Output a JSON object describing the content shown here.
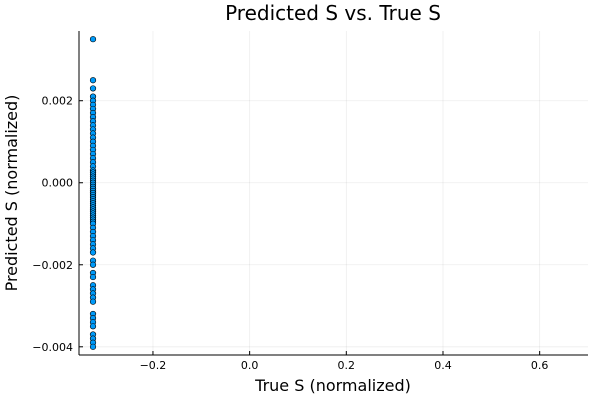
{
  "chart_data": {
    "type": "scatter",
    "title": "Predicted S vs. True S",
    "xlabel": "True S (normalized)",
    "ylabel": "Predicted S (normalized)",
    "xlim": [
      -0.353,
      0.7
    ],
    "ylim": [
      -0.0042,
      0.0037
    ],
    "xticks": [
      -0.2,
      0.0,
      0.2,
      0.4,
      0.6
    ],
    "xtick_labels": [
      "−0.2",
      "0.0",
      "0.2",
      "0.4",
      "0.6"
    ],
    "yticks": [
      -0.004,
      -0.002,
      0.0,
      0.002
    ],
    "ytick_labels": [
      "−0.004",
      "−0.002",
      "0.000",
      "0.002"
    ],
    "grid": true,
    "legend": "none",
    "marker_color": "#009af9",
    "series": [
      {
        "x": [
          -0.324,
          -0.324,
          -0.324,
          -0.324,
          -0.324,
          -0.324,
          -0.324,
          -0.324,
          -0.324,
          -0.324,
          -0.324,
          -0.324,
          -0.324,
          -0.324,
          -0.324,
          -0.324,
          -0.324,
          -0.324,
          -0.324,
          -0.324,
          -0.324,
          -0.324,
          -0.324,
          -0.324,
          -0.324,
          -0.324,
          -0.324,
          -0.324,
          -0.324,
          -0.324,
          -0.324,
          -0.324,
          -0.324,
          -0.324,
          -0.324,
          -0.324,
          -0.324,
          -0.324,
          -0.324,
          -0.324,
          -0.324,
          -0.324,
          -0.324,
          -0.324,
          -0.324,
          -0.324,
          -0.324,
          -0.324,
          -0.324,
          -0.324,
          -0.324,
          -0.324,
          -0.324,
          -0.324,
          -0.324,
          -0.324,
          -0.324,
          -0.324,
          -0.324,
          -0.324,
          -0.324,
          -0.324,
          -0.324,
          -0.324,
          -0.324,
          -0.324,
          -0.324,
          -0.324,
          -0.324,
          -0.324,
          -0.324,
          -0.324
        ],
        "y": [
          0.0035,
          0.0025,
          0.0023,
          0.0021,
          0.002,
          0.0019,
          0.0018,
          0.0017,
          0.0016,
          0.0015,
          0.0014,
          0.0013,
          0.0012,
          0.0011,
          0.001,
          0.0009,
          0.0008,
          0.0007,
          0.0006,
          0.0005,
          0.0004,
          0.0003,
          0.00025,
          0.0002,
          0.00015,
          0.0001,
          5e-05,
          0.0,
          -5e-05,
          -0.0001,
          -0.00015,
          -0.0002,
          -0.00025,
          -0.0003,
          -0.00035,
          -0.0004,
          -0.00045,
          -0.0005,
          -0.00055,
          -0.0006,
          -0.00065,
          -0.0007,
          -0.00075,
          -0.0008,
          -0.00085,
          -0.0009,
          -0.00095,
          -0.001,
          -0.0011,
          -0.0012,
          -0.0013,
          -0.0014,
          -0.0015,
          -0.0016,
          -0.0017,
          -0.0019,
          -0.002,
          -0.0022,
          -0.0023,
          -0.0025,
          -0.0026,
          -0.0027,
          -0.0028,
          -0.0029,
          -0.0032,
          -0.0033,
          -0.0034,
          -0.0035,
          -0.0037,
          -0.0038,
          -0.0039,
          -0.004
        ]
      }
    ]
  }
}
